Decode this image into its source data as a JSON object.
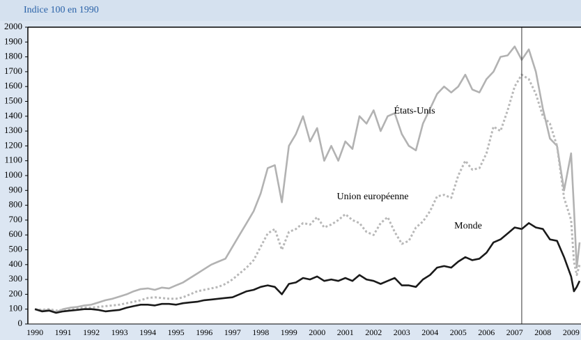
{
  "chart_data": {
    "type": "line",
    "subtitle": "Indice 100 en 1990",
    "x": [
      1990,
      1990.25,
      1990.5,
      1990.75,
      1991,
      1991.25,
      1991.5,
      1991.75,
      1992,
      1992.25,
      1992.5,
      1992.75,
      1993,
      1993.25,
      1993.5,
      1993.75,
      1994,
      1994.25,
      1994.5,
      1994.75,
      1995,
      1995.25,
      1995.5,
      1995.75,
      1996,
      1996.25,
      1996.5,
      1996.75,
      1997,
      1997.25,
      1997.5,
      1997.75,
      1998,
      1998.25,
      1998.5,
      1998.75,
      1999,
      1999.25,
      1999.5,
      1999.75,
      2000,
      2000.25,
      2000.5,
      2000.75,
      2001,
      2001.25,
      2001.5,
      2001.75,
      2002,
      2002.25,
      2002.5,
      2002.75,
      2003,
      2003.25,
      2003.5,
      2003.75,
      2004,
      2004.25,
      2004.5,
      2004.75,
      2005,
      2005.25,
      2005.5,
      2005.75,
      2006,
      2006.25,
      2006.5,
      2006.75,
      2007,
      2007.25,
      2007.5,
      2007.75,
      2008,
      2008.25,
      2008.5,
      2008.75,
      2009,
      2009.1,
      2009.2,
      2009.3
    ],
    "series": [
      {
        "name": "États-Unis",
        "color": "#b2b2b2",
        "style": "solid",
        "values": [
          100,
          90,
          95,
          80,
          100,
          110,
          115,
          125,
          130,
          145,
          160,
          170,
          185,
          200,
          220,
          235,
          240,
          230,
          245,
          240,
          260,
          280,
          310,
          340,
          370,
          400,
          420,
          440,
          520,
          600,
          680,
          760,
          880,
          1050,
          1070,
          820,
          1200,
          1280,
          1400,
          1230,
          1320,
          1100,
          1200,
          1100,
          1230,
          1180,
          1400,
          1350,
          1440,
          1300,
          1400,
          1420,
          1280,
          1200,
          1170,
          1350,
          1450,
          1550,
          1600,
          1560,
          1600,
          1680,
          1580,
          1560,
          1650,
          1700,
          1800,
          1810,
          1870,
          1780,
          1850,
          1700,
          1450,
          1250,
          1200,
          900,
          1150,
          780,
          380,
          550
        ]
      },
      {
        "name": "Union européenne",
        "color": "#b8b8b8",
        "style": "dotted",
        "values": [
          100,
          95,
          100,
          90,
          95,
          100,
          105,
          110,
          110,
          115,
          120,
          125,
          130,
          140,
          150,
          160,
          175,
          180,
          175,
          170,
          170,
          180,
          200,
          220,
          230,
          240,
          250,
          270,
          300,
          340,
          380,
          430,
          520,
          610,
          640,
          500,
          620,
          640,
          680,
          670,
          720,
          650,
          670,
          700,
          740,
          700,
          680,
          620,
          600,
          680,
          720,
          620,
          540,
          560,
          650,
          690,
          760,
          860,
          870,
          850,
          1000,
          1100,
          1040,
          1050,
          1150,
          1330,
          1300,
          1440,
          1600,
          1680,
          1650,
          1550,
          1400,
          1350,
          1200,
          850,
          700,
          420,
          330,
          400
        ]
      },
      {
        "name": "Monde",
        "color": "#1a1a1a",
        "style": "solid",
        "values": [
          100,
          85,
          90,
          75,
          85,
          90,
          95,
          100,
          100,
          95,
          85,
          90,
          95,
          110,
          120,
          130,
          130,
          125,
          135,
          135,
          130,
          140,
          145,
          150,
          160,
          165,
          170,
          175,
          180,
          200,
          220,
          230,
          250,
          260,
          250,
          200,
          270,
          280,
          310,
          300,
          320,
          290,
          300,
          290,
          310,
          290,
          330,
          300,
          290,
          270,
          290,
          310,
          260,
          260,
          250,
          300,
          330,
          380,
          390,
          380,
          420,
          450,
          430,
          440,
          480,
          550,
          570,
          610,
          650,
          640,
          680,
          650,
          640,
          570,
          560,
          450,
          320,
          220,
          250,
          290
        ]
      }
    ],
    "xlim": [
      1989.75,
      2009.35
    ],
    "xticks": [
      1990,
      1991,
      1992,
      1993,
      1994,
      1995,
      1996,
      1997,
      1998,
      1999,
      2000,
      2001,
      2002,
      2003,
      2004,
      2005,
      2006,
      2007,
      2008,
      2009
    ],
    "ylim": [
      0,
      2000
    ],
    "yticks": [
      0,
      100,
      200,
      300,
      400,
      500,
      600,
      700,
      800,
      900,
      1000,
      1100,
      1200,
      1300,
      1400,
      1500,
      1600,
      1700,
      1800,
      1900,
      2000
    ],
    "vline": 2007.25
  }
}
